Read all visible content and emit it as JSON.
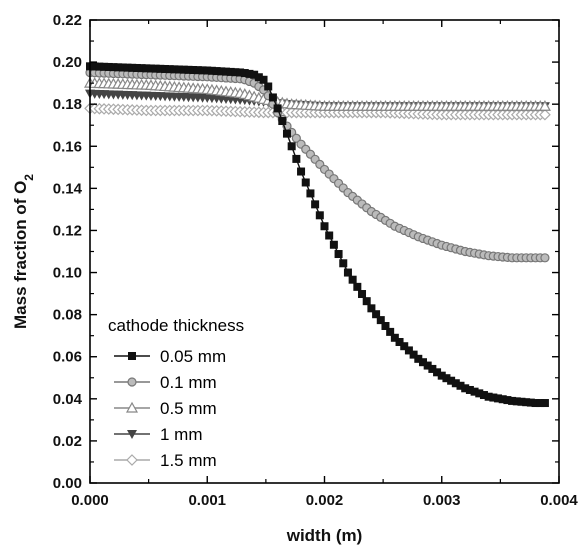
{
  "chart_data": {
    "type": "line",
    "xlabel": "width (m)",
    "ylabel_main": "Mass fraction of O",
    "ylabel_sub": "2",
    "xlim": [
      0.0,
      0.004
    ],
    "ylim": [
      0.0,
      0.22
    ],
    "x_ticks": [
      "0.000",
      "0.001",
      "0.002",
      "0.003",
      "0.004"
    ],
    "y_ticks": [
      "0.00",
      "0.02",
      "0.04",
      "0.06",
      "0.08",
      "0.10",
      "0.12",
      "0.14",
      "0.16",
      "0.18",
      "0.20",
      "0.22"
    ],
    "grid": false,
    "legend": {
      "title": "cathode thickness",
      "placement": "bottom-left"
    },
    "series": [
      {
        "name": "0.05 mm",
        "marker": "filled-square",
        "color": "#111111",
        "x": [
          0.0,
          0.0005,
          0.001,
          0.0013,
          0.0014,
          0.0015,
          0.0016,
          0.0017,
          0.0018,
          0.0019,
          0.002,
          0.0022,
          0.0024,
          0.0026,
          0.0028,
          0.003,
          0.0032,
          0.0034,
          0.0036,
          0.0038,
          0.0039
        ],
        "y": [
          0.198,
          0.197,
          0.196,
          0.195,
          0.194,
          0.191,
          0.178,
          0.163,
          0.148,
          0.135,
          0.122,
          0.1,
          0.083,
          0.069,
          0.059,
          0.051,
          0.045,
          0.041,
          0.039,
          0.038,
          0.038
        ]
      },
      {
        "name": "0.1 mm",
        "marker": "gray-circle",
        "color": "#777777",
        "x": [
          0.0,
          0.0005,
          0.001,
          0.0013,
          0.0014,
          0.0015,
          0.0016,
          0.0017,
          0.0018,
          0.0019,
          0.002,
          0.0022,
          0.0024,
          0.0026,
          0.0028,
          0.003,
          0.0032,
          0.0034,
          0.0036,
          0.0038,
          0.0039
        ],
        "y": [
          0.195,
          0.194,
          0.193,
          0.192,
          0.19,
          0.186,
          0.176,
          0.168,
          0.161,
          0.155,
          0.149,
          0.138,
          0.129,
          0.122,
          0.117,
          0.113,
          0.11,
          0.108,
          0.107,
          0.107,
          0.107
        ]
      },
      {
        "name": "0.5 mm",
        "marker": "open-triangle-up",
        "color": "#888888",
        "x": [
          0.0,
          0.0005,
          0.001,
          0.0013,
          0.0015,
          0.0017,
          0.002,
          0.0025,
          0.003,
          0.0035,
          0.0039
        ],
        "y": [
          0.19,
          0.189,
          0.187,
          0.185,
          0.182,
          0.18,
          0.179,
          0.179,
          0.179,
          0.179,
          0.179
        ]
      },
      {
        "name": "1 mm",
        "marker": "filled-triangle-down",
        "color": "#444444",
        "x": [
          0.0,
          0.0005,
          0.001,
          0.0013,
          0.0015,
          0.0017,
          0.002,
          0.0025,
          0.003,
          0.0035,
          0.0039
        ],
        "y": [
          0.185,
          0.184,
          0.183,
          0.182,
          0.181,
          0.18,
          0.179,
          0.179,
          0.179,
          0.179,
          0.179
        ]
      },
      {
        "name": "1.5 mm",
        "marker": "open-diamond",
        "color": "#aaaaaa",
        "x": [
          0.0,
          0.0005,
          0.001,
          0.0015,
          0.002,
          0.0025,
          0.003,
          0.0035,
          0.0039
        ],
        "y": [
          0.178,
          0.177,
          0.177,
          0.176,
          0.176,
          0.176,
          0.175,
          0.175,
          0.175
        ]
      }
    ]
  }
}
